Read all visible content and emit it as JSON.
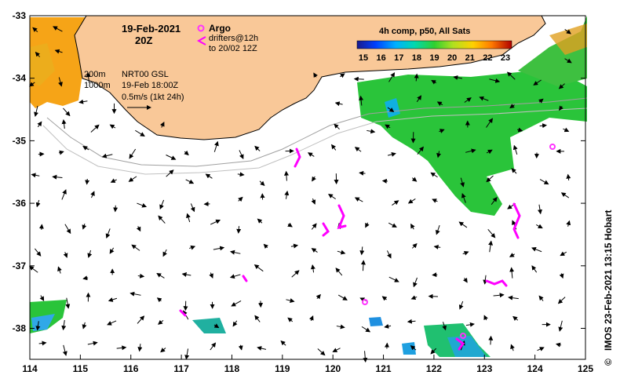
{
  "header": {
    "date": "19-Feb-2021",
    "time": "20Z"
  },
  "legend": {
    "argo_label": "Argo",
    "drifters_line1": "drifters@12h",
    "drifters_line2": "to 20/02 12Z",
    "contour_200": "200m",
    "contour_1000": "1000m",
    "product": "NRT00 GSL",
    "product_time": "19-Feb 18:00Z",
    "scale": "0.5m/s (1kt 24h)",
    "colorbar_title": "4h comp, p50, All Sats",
    "colorbar_ticks": [
      "15",
      "16",
      "17",
      "18",
      "19",
      "20",
      "21",
      "22",
      "23"
    ]
  },
  "axes": {
    "lon_ticks": [
      "114",
      "115",
      "116",
      "117",
      "118",
      "119",
      "120",
      "121",
      "122",
      "123",
      "124",
      "125"
    ],
    "lat_ticks": [
      "-33",
      "-34",
      "-35",
      "-36",
      "-37",
      "-38"
    ]
  },
  "credit": "IMOS 23-Feb-2021 13:15 Hobart",
  "copyright_symbol": "©",
  "colors": {
    "land": "#f9c898",
    "argo": "#ff33ff",
    "drifter": "#ff00ff",
    "sst_cool": "#00a0ff",
    "sst_mid": "#22cc33",
    "sst_warm": "#ffa500"
  }
}
